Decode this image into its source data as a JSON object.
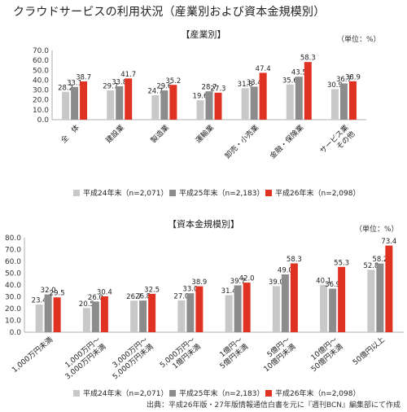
{
  "title": "クラウドサービスの利用状況（産業別および資本金規模別）",
  "source": "出典：平成26年版・27年版情報通信白書を元に『週刊BCN』編集部にて作成",
  "colors": {
    "h24": "#c8c8c8",
    "h25": "#8c8c8c",
    "h26": "#e03222"
  },
  "chart_data": [
    {
      "type": "bar",
      "panel_title": "【産業別】",
      "unit": "（単位：%）",
      "ylim": [
        0,
        70
      ],
      "yticks": [
        "0.0",
        "10.0",
        "20.0",
        "30.0",
        "40.0",
        "50.0",
        "60.0",
        "70.0"
      ],
      "grid": false,
      "legend_position": "bottom",
      "categories": [
        "全　体",
        "建設業",
        "製造業",
        "運輸業",
        "卸売・小売業",
        "金融・保険業",
        "サービス業\nその他"
      ],
      "series": [
        {
          "name": "平成24年末（n=2,071）",
          "color_key": "h24",
          "values": [
            28.2,
            29.7,
            24.7,
            19.6,
            31.8,
            35.6,
            30.9
          ]
        },
        {
          "name": "平成25年末（n=2,183）",
          "color_key": "h25",
          "values": [
            33.1,
            33.8,
            29.6,
            28.7,
            33.4,
            43.5,
            36.7
          ]
        },
        {
          "name": "平成26年末（n=2,098）",
          "color_key": "h26",
          "values": [
            38.7,
            41.7,
            35.2,
            27.3,
            47.4,
            58.3,
            38.9
          ]
        }
      ]
    },
    {
      "type": "bar",
      "panel_title": "【資本金規模別】",
      "unit": "（単位：%）",
      "ylim": [
        0,
        80
      ],
      "yticks": [
        "0.0",
        "10.0",
        "20.0",
        "30.0",
        "40.0",
        "50.0",
        "60.0",
        "70.0",
        "80.0"
      ],
      "grid": false,
      "legend_position": "bottom",
      "categories": [
        "1,000万円未満",
        "1,000万円～\n3,000万円未満",
        "3,000万円～\n5,000万円未満",
        "5,000万円～\n1億円未満",
        "1億円～\n5億円未満",
        "5億円～\n10億円未満",
        "10億円～\n50億円未満",
        "50億円以上"
      ],
      "series": [
        {
          "name": "平成24年末（n=2,071）",
          "color_key": "h24",
          "values": [
            23.4,
            20.5,
            26.7,
            27.0,
            31.4,
            39.0,
            40.1,
            52.8
          ]
        },
        {
          "name": "平成25年末（n=2,183）",
          "color_key": "h25",
          "values": [
            32.0,
            26.0,
            26.8,
            33.0,
            39.7,
            49.0,
            36.9,
            58.2
          ]
        },
        {
          "name": "平成26年末（n=2,098）",
          "color_key": "h26",
          "values": [
            29.5,
            30.4,
            32.5,
            38.9,
            42.0,
            58.3,
            55.3,
            73.4
          ]
        }
      ]
    }
  ]
}
